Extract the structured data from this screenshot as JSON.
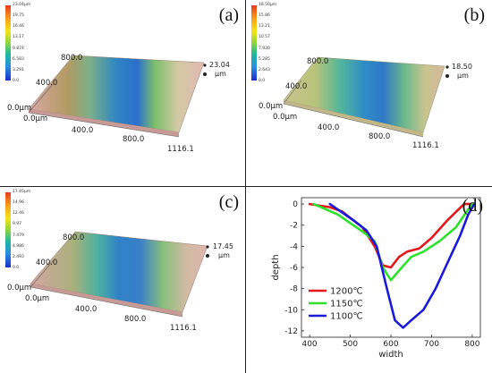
{
  "panels": [
    {
      "label": "(a)",
      "colorbar_ticks": [
        "23.04μm",
        "19.75",
        "16.46",
        "13.17",
        "9.874",
        "6.583",
        "3.291",
        "0.0"
      ],
      "z_max_value": "23.04",
      "z_unit": "μm",
      "axis_labels": {
        "y_top": "800.0",
        "y_mid": "400.0",
        "y_origin": "0.0μm",
        "x_origin": "0.0μm",
        "x_mid": "400.0",
        "x_high": "800.0",
        "x_end": "1116.1"
      }
    },
    {
      "label": "(b)",
      "colorbar_ticks": [
        "18.50μm",
        "15.86",
        "13.21",
        "10.57",
        "7.930",
        "5.285",
        "2.643",
        "0.0"
      ],
      "z_max_value": "18.50",
      "z_unit": "μm",
      "axis_labels": {
        "y_top": "800.0",
        "y_mid": "400.0",
        "y_origin": "0.0μm",
        "x_origin": "0.0μm",
        "x_mid": "400.0",
        "x_high": "800.0",
        "x_end": "1116.1"
      }
    },
    {
      "label": "(c)",
      "colorbar_ticks": [
        "17.45μm",
        "14.96",
        "12.46",
        "9.97",
        "7.479",
        "4.986",
        "2.493",
        "0.0"
      ],
      "z_max_value": "17.45",
      "z_unit": "μm",
      "axis_labels": {
        "y_top": "800.0",
        "y_mid": "400.0",
        "y_origin": "0.0μm",
        "x_origin": "0.0μm",
        "x_mid": "400.0",
        "x_high": "800.0",
        "x_end": "1116.1"
      }
    }
  ],
  "chart_panel": {
    "label": "(d)"
  },
  "chart_data": {
    "type": "line",
    "title": "",
    "xlabel": "width",
    "ylabel": "depth",
    "xlim": [
      380,
      820
    ],
    "ylim": [
      -12.6,
      0.6
    ],
    "xticks": [
      400,
      500,
      600,
      700,
      800
    ],
    "yticks": [
      0,
      -2,
      -4,
      -6,
      -8,
      -10,
      -12
    ],
    "grid": false,
    "legend_position": "bottom-left",
    "series": [
      {
        "name": "1200℃",
        "color": "#e3161b",
        "x": [
          400,
          450,
          480,
          500,
          530,
          560,
          580,
          600,
          620,
          640,
          670,
          700,
          740,
          780,
          800
        ],
        "y": [
          0,
          -0.3,
          -0.7,
          -1.3,
          -2.2,
          -4.0,
          -5.8,
          -6.0,
          -5.0,
          -4.5,
          -4.2,
          -3.2,
          -1.5,
          0,
          0
        ]
      },
      {
        "name": "1150℃",
        "color": "#2ee02e",
        "x": [
          410,
          440,
          470,
          500,
          530,
          560,
          580,
          600,
          620,
          650,
          680,
          720,
          760,
          790,
          800
        ],
        "y": [
          0,
          -0.5,
          -1.0,
          -1.8,
          -2.6,
          -3.5,
          -6.0,
          -7.2,
          -6.3,
          -5.0,
          -4.5,
          -3.5,
          -2.2,
          -0.5,
          0
        ]
      },
      {
        "name": "1100℃",
        "color": "#1a1adb",
        "x": [
          450,
          480,
          510,
          540,
          565,
          590,
          610,
          630,
          650,
          680,
          710,
          740,
          770,
          790,
          805
        ],
        "y": [
          0,
          -0.8,
          -1.6,
          -2.5,
          -4.0,
          -8.0,
          -11.0,
          -11.7,
          -11.0,
          -10.0,
          -8.0,
          -5.5,
          -3.0,
          -1.0,
          0
        ]
      }
    ]
  }
}
